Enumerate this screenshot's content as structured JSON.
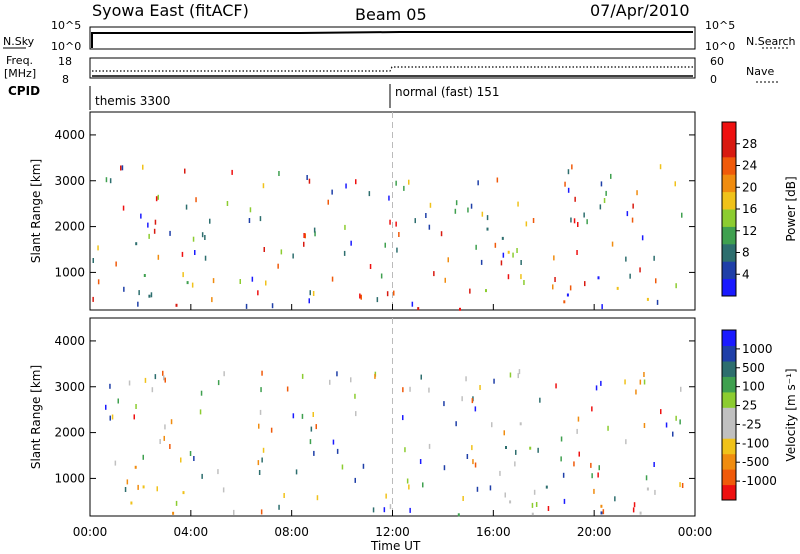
{
  "header": {
    "station": "Syowa East (fitACF)",
    "beam": "Beam 05",
    "date": "07/Apr/2010"
  },
  "summary": {
    "nsky_label": "N.Sky",
    "nsearch_label": "N.Search",
    "noise_ticks": [
      "10^5",
      "10^0"
    ],
    "freq_label_1": "Freq.",
    "freq_label_2": "[MHz]",
    "freq_ticks": [
      "18",
      "8"
    ],
    "nave_label": "Nave",
    "nave_ticks": [
      "60",
      "0"
    ],
    "cpid_label": "CPID",
    "cpid_segments": [
      {
        "name": "themis 3300",
        "start_hour": 0
      },
      {
        "name": "normal (fast) 151",
        "start_hour": 12
      }
    ]
  },
  "colorbars": {
    "power": {
      "label": "Power [dB]",
      "colors": [
        "#1a1aff",
        "#1f3fa8",
        "#2d6e6e",
        "#3fa04f",
        "#8ccc30",
        "#f0c21a",
        "#f08c0f",
        "#f05a0a",
        "#d81a10",
        "#ee1010"
      ],
      "ticks": [
        "4",
        "8",
        "12",
        "16",
        "20",
        "24",
        "28"
      ]
    },
    "velocity": {
      "label": "Velocity [m s⁻¹]",
      "colors": [
        "#ee1010",
        "#f05a0a",
        "#f08c0f",
        "#f0c21a",
        "#c0c0c0",
        "#c0c0c0",
        "#8ccc30",
        "#3fa04f",
        "#2d6e6e",
        "#1f3fa8",
        "#1a1aff"
      ],
      "ticks": [
        "1000",
        "500",
        "100",
        "25",
        "-25",
        "-100",
        "-500",
        "-1000"
      ]
    }
  },
  "chart_data": [
    {
      "type": "heatmap",
      "panel": "power",
      "ylabel": "Slant Range [km]",
      "ylim": [
        180,
        4500
      ],
      "yticks": [
        "1000",
        "2000",
        "3000",
        "4000"
      ],
      "xlim": [
        0,
        24
      ],
      "xticks": [
        "00:00",
        "04:00",
        "08:00",
        "12:00",
        "16:00",
        "20:00",
        "00:00"
      ],
      "series": [
        {
          "x_range": [
            1.0,
            4.0
          ],
          "y_range": [
            200,
            1700
          ],
          "value": "mixed 4-28 dB"
        },
        {
          "x_range": [
            12.5,
            22.5
          ],
          "y_range": [
            200,
            800
          ],
          "value": "up to 28 dB"
        },
        {
          "x_range": [
            15.5,
            18.0
          ],
          "y_range": [
            1300,
            2300
          ],
          "value": "4-12 dB"
        },
        {
          "x_range": [
            19.5,
            20.5
          ],
          "y_range": [
            600,
            1700
          ],
          "value": "12-24 dB"
        }
      ]
    },
    {
      "type": "heatmap",
      "panel": "velocity",
      "ylabel": "Slant Range [km]",
      "ylim": [
        180,
        4500
      ],
      "yticks": [
        "1000",
        "2000",
        "3000",
        "4000"
      ],
      "xlim": [
        0,
        24
      ],
      "xticks": [
        "00:00",
        "04:00",
        "08:00",
        "12:00",
        "16:00",
        "20:00",
        "00:00"
      ],
      "xlabel": "Time UT",
      "series": [
        {
          "x_range": [
            1.0,
            4.0
          ],
          "y_range": [
            200,
            1700
          ],
          "value": "-100 to -500 m/s"
        },
        {
          "x_range": [
            12.5,
            22.5
          ],
          "y_range": [
            200,
            900
          ],
          "value": "mixed -100 to 100 m/s"
        },
        {
          "x_range": [
            15.5,
            18.0
          ],
          "y_range": [
            1300,
            2300
          ],
          "value": "-100 to 500 m/s"
        }
      ]
    }
  ]
}
